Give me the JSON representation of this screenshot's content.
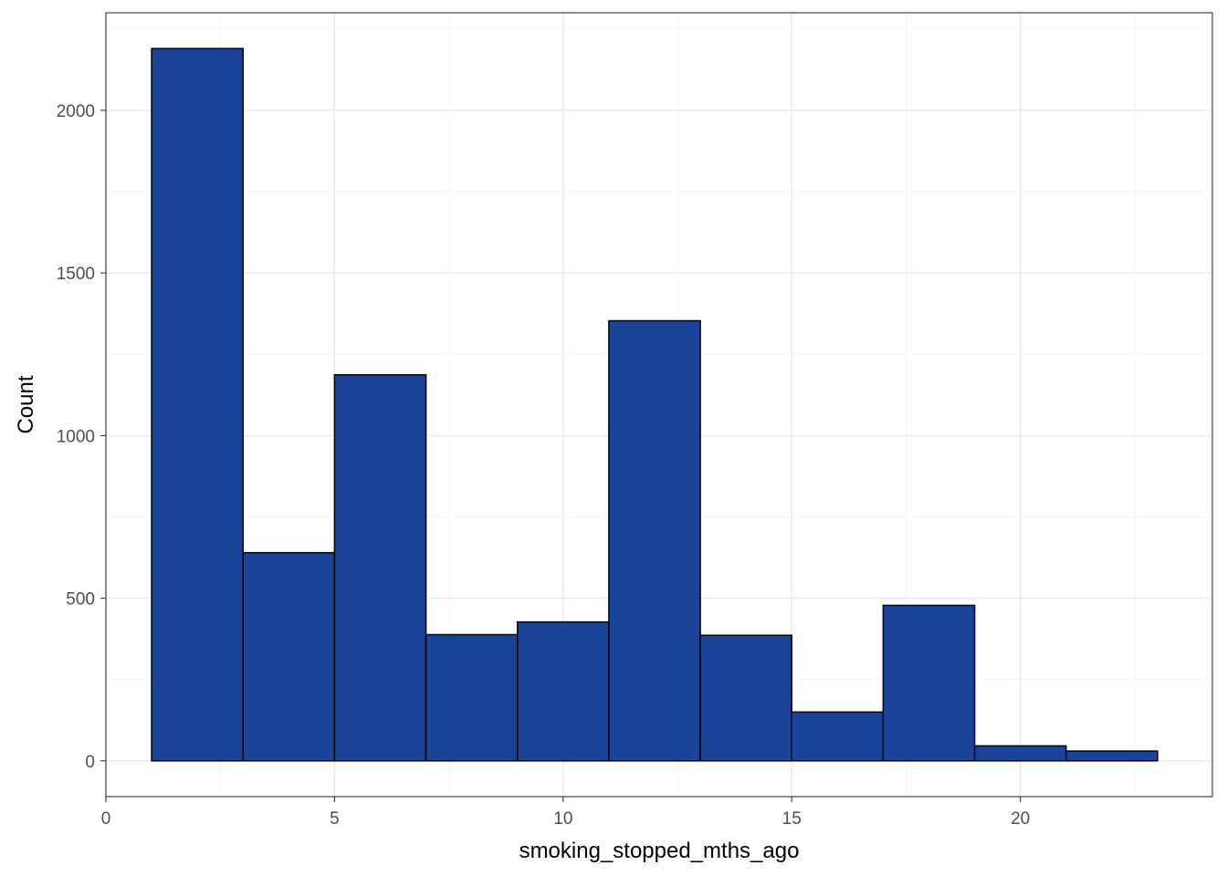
{
  "chart_data": {
    "type": "bar",
    "subtype": "histogram",
    "title": "",
    "xlabel": "smoking_stopped_mths_ago",
    "ylabel": "Count",
    "bins": [
      {
        "x0": 1,
        "x1": 3,
        "count": 2190
      },
      {
        "x0": 3,
        "x1": 5,
        "count": 640
      },
      {
        "x0": 5,
        "x1": 7,
        "count": 1187
      },
      {
        "x0": 7,
        "x1": 9,
        "count": 388
      },
      {
        "x0": 9,
        "x1": 11,
        "count": 427
      },
      {
        "x0": 11,
        "x1": 13,
        "count": 1353
      },
      {
        "x0": 13,
        "x1": 15,
        "count": 386
      },
      {
        "x0": 15,
        "x1": 17,
        "count": 150
      },
      {
        "x0": 17,
        "x1": 19,
        "count": 478
      },
      {
        "x0": 19,
        "x1": 21,
        "count": 46
      },
      {
        "x0": 21,
        "x1": 23,
        "count": 30
      }
    ],
    "xlim": [
      0,
      24.2
    ],
    "ylim": [
      -110,
      2300
    ],
    "x_ticks": [
      0,
      5,
      10,
      15,
      20
    ],
    "y_ticks": [
      0,
      500,
      1000,
      1500,
      2000
    ],
    "x_tick_labels": [
      "0",
      "5",
      "10",
      "15",
      "20"
    ],
    "y_tick_labels": [
      "0",
      "500",
      "1000",
      "1500",
      "2000"
    ],
    "grid": true,
    "legend": "none",
    "colors": {
      "bar_fill": "#19449a",
      "bar_stroke": "#000000",
      "grid_major": "#ebebeb",
      "grid_minor": "#f5f5f5",
      "panel_border": "#333333",
      "tick_text": "#4d4d4d"
    }
  }
}
